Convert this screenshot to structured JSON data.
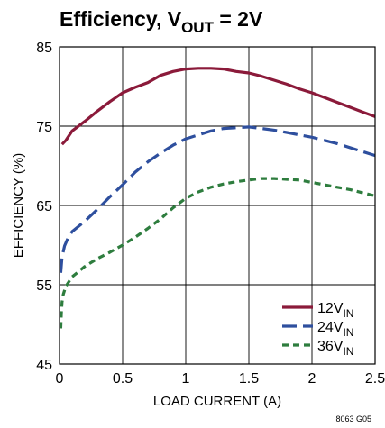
{
  "chart_data": {
    "type": "line",
    "title": {
      "main": "Efficiency, V",
      "sub": "OUT",
      "tail": " = 2V"
    },
    "xlabel": "LOAD CURRENT (A)",
    "ylabel": "EFFICIENCY (%)",
    "figure_id": "8063 G05",
    "xlim": [
      0,
      2.5
    ],
    "ylim": [
      45,
      85
    ],
    "xticks": [
      "0",
      "0.5",
      "1",
      "1.5",
      "2",
      "2.5"
    ],
    "yticks": [
      "45",
      "55",
      "65",
      "75",
      "85"
    ],
    "grid": true,
    "legend_position": "bottom-right",
    "series": [
      {
        "name": "12V",
        "name_sub": "IN",
        "color": "#8b1a3a",
        "dash": "solid",
        "points": [
          [
            0.02,
            72.7
          ],
          [
            0.05,
            73.2
          ],
          [
            0.1,
            74.4
          ],
          [
            0.2,
            75.6
          ],
          [
            0.3,
            76.9
          ],
          [
            0.4,
            78.1
          ],
          [
            0.5,
            79.2
          ],
          [
            0.6,
            79.9
          ],
          [
            0.7,
            80.5
          ],
          [
            0.8,
            81.4
          ],
          [
            0.9,
            81.9
          ],
          [
            1.0,
            82.2
          ],
          [
            1.1,
            82.3
          ],
          [
            1.2,
            82.3
          ],
          [
            1.3,
            82.2
          ],
          [
            1.4,
            81.9
          ],
          [
            1.5,
            81.7
          ],
          [
            1.6,
            81.3
          ],
          [
            1.7,
            80.8
          ],
          [
            1.8,
            80.3
          ],
          [
            1.9,
            79.7
          ],
          [
            2.0,
            79.2
          ],
          [
            2.1,
            78.6
          ],
          [
            2.2,
            78.0
          ],
          [
            2.3,
            77.4
          ],
          [
            2.4,
            76.8
          ],
          [
            2.5,
            76.2
          ]
        ]
      },
      {
        "name": "24V",
        "name_sub": "IN",
        "color": "#2e4f9e",
        "dash": "long",
        "points": [
          [
            0.01,
            56.5
          ],
          [
            0.02,
            58.5
          ],
          [
            0.04,
            59.9
          ],
          [
            0.07,
            61.0
          ],
          [
            0.1,
            61.7
          ],
          [
            0.2,
            63.0
          ],
          [
            0.3,
            64.5
          ],
          [
            0.4,
            66.1
          ],
          [
            0.5,
            67.6
          ],
          [
            0.6,
            69.2
          ],
          [
            0.7,
            70.5
          ],
          [
            0.8,
            71.6
          ],
          [
            0.9,
            72.6
          ],
          [
            1.0,
            73.4
          ],
          [
            1.1,
            73.9
          ],
          [
            1.2,
            74.4
          ],
          [
            1.3,
            74.7
          ],
          [
            1.4,
            74.8
          ],
          [
            1.5,
            74.9
          ],
          [
            1.6,
            74.7
          ],
          [
            1.7,
            74.5
          ],
          [
            1.8,
            74.2
          ],
          [
            1.9,
            73.9
          ],
          [
            2.0,
            73.6
          ],
          [
            2.1,
            73.2
          ],
          [
            2.2,
            72.8
          ],
          [
            2.3,
            72.3
          ],
          [
            2.4,
            71.8
          ],
          [
            2.5,
            71.3
          ]
        ]
      },
      {
        "name": "36V",
        "name_sub": "IN",
        "color": "#2e7d3e",
        "dash": "short",
        "points": [
          [
            0.01,
            49.5
          ],
          [
            0.015,
            51.5
          ],
          [
            0.02,
            52.8
          ],
          [
            0.03,
            53.8
          ],
          [
            0.05,
            54.8
          ],
          [
            0.1,
            56.0
          ],
          [
            0.2,
            57.3
          ],
          [
            0.3,
            58.3
          ],
          [
            0.4,
            59.1
          ],
          [
            0.5,
            60.0
          ],
          [
            0.6,
            61.0
          ],
          [
            0.7,
            62.1
          ],
          [
            0.8,
            63.3
          ],
          [
            0.9,
            64.7
          ],
          [
            1.0,
            65.9
          ],
          [
            1.1,
            66.7
          ],
          [
            1.2,
            67.3
          ],
          [
            1.3,
            67.7
          ],
          [
            1.4,
            68.0
          ],
          [
            1.5,
            68.2
          ],
          [
            1.6,
            68.4
          ],
          [
            1.7,
            68.4
          ],
          [
            1.8,
            68.3
          ],
          [
            1.9,
            68.2
          ],
          [
            2.0,
            67.9
          ],
          [
            2.1,
            67.6
          ],
          [
            2.2,
            67.3
          ],
          [
            2.3,
            67.0
          ],
          [
            2.4,
            66.6
          ],
          [
            2.5,
            66.2
          ]
        ]
      }
    ]
  }
}
